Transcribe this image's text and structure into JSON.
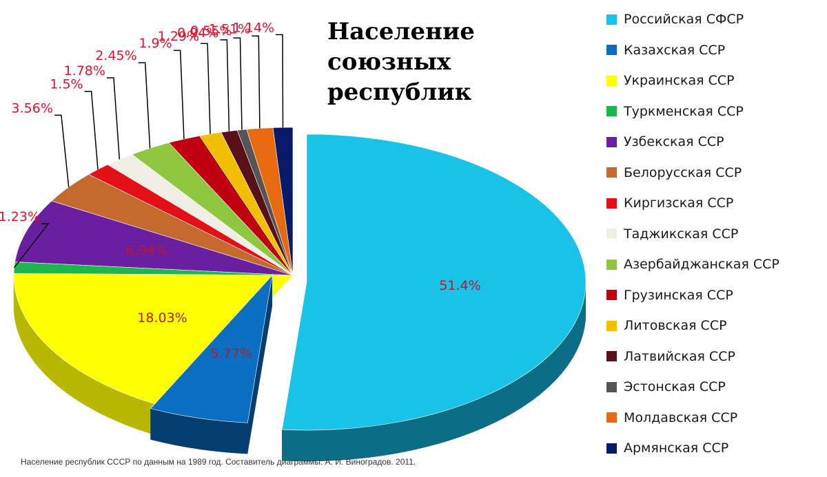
{
  "title": "Население союзных республик",
  "source_note": "Население республик СССР по данным на 1989 год. Составитель диаграммы: А. И. Виноградов. 2011.",
  "chart_data": {
    "type": "pie",
    "title": "Население союзных республик",
    "unit": "%",
    "legend_position": "right",
    "slices": [
      {
        "label": "Российская СФСР",
        "value": 51.4,
        "value_label": "51.4%",
        "color": "#19C3E8",
        "side": "#0C6E86"
      },
      {
        "label": "Казахская ССР",
        "value": 5.77,
        "value_label": "5.77%",
        "color": "#0A6FC0",
        "side": "#053F70"
      },
      {
        "label": "Украинская ССР",
        "value": 18.03,
        "value_label": "18.03%",
        "color": "#FFFF00",
        "side": "#B8B800"
      },
      {
        "label": "Туркменская ССР",
        "value": 1.23,
        "value_label": "1.23%",
        "color": "#1CB64C",
        "side": "#0F6A2A"
      },
      {
        "label": "Узбекская ССР",
        "value": 6.94,
        "value_label": "6.94%",
        "color": "#6A1FA0",
        "side": "#3A0F5A"
      },
      {
        "label": "Белорусская ССР",
        "value": 3.56,
        "value_label": "3.56%",
        "color": "#C46A2E",
        "side": "#7A3F18"
      },
      {
        "label": "Киргизская ССР",
        "value": 1.5,
        "value_label": "1.5%",
        "color": "#E31018",
        "side": "#8A080C"
      },
      {
        "label": "Таджикская ССР",
        "value": 1.78,
        "value_label": "1.78%",
        "color": "#EFEFE6",
        "side": "#A8A89A"
      },
      {
        "label": "Азербайджанская ССР",
        "value": 2.45,
        "value_label": "2.45%",
        "color": "#8EC640",
        "side": "#557A22"
      },
      {
        "label": "Грузинская ССР",
        "value": 1.9,
        "value_label": "1.9%",
        "color": "#C00010",
        "side": "#700008"
      },
      {
        "label": "Литовская ССР",
        "value": 1.29,
        "value_label": "1.29%",
        "color": "#F2C000",
        "side": "#8E7000"
      },
      {
        "label": "Латвийская ССР",
        "value": 0.94,
        "value_label": "0.94%",
        "color": "#5A1018",
        "side": "#33080C"
      },
      {
        "label": "Эстонская ССР",
        "value": 0.55,
        "value_label": "0.55%",
        "color": "#555555",
        "side": "#2E2E2E"
      },
      {
        "label": "Молдавская ССР",
        "value": 1.51,
        "value_label": "1.51%",
        "color": "#E86A10",
        "side": "#8A3C06"
      },
      {
        "label": "Армянская ССР",
        "value": 1.14,
        "value_label": "1.14%",
        "color": "#0A1A6A",
        "side": "#050D38"
      }
    ]
  }
}
